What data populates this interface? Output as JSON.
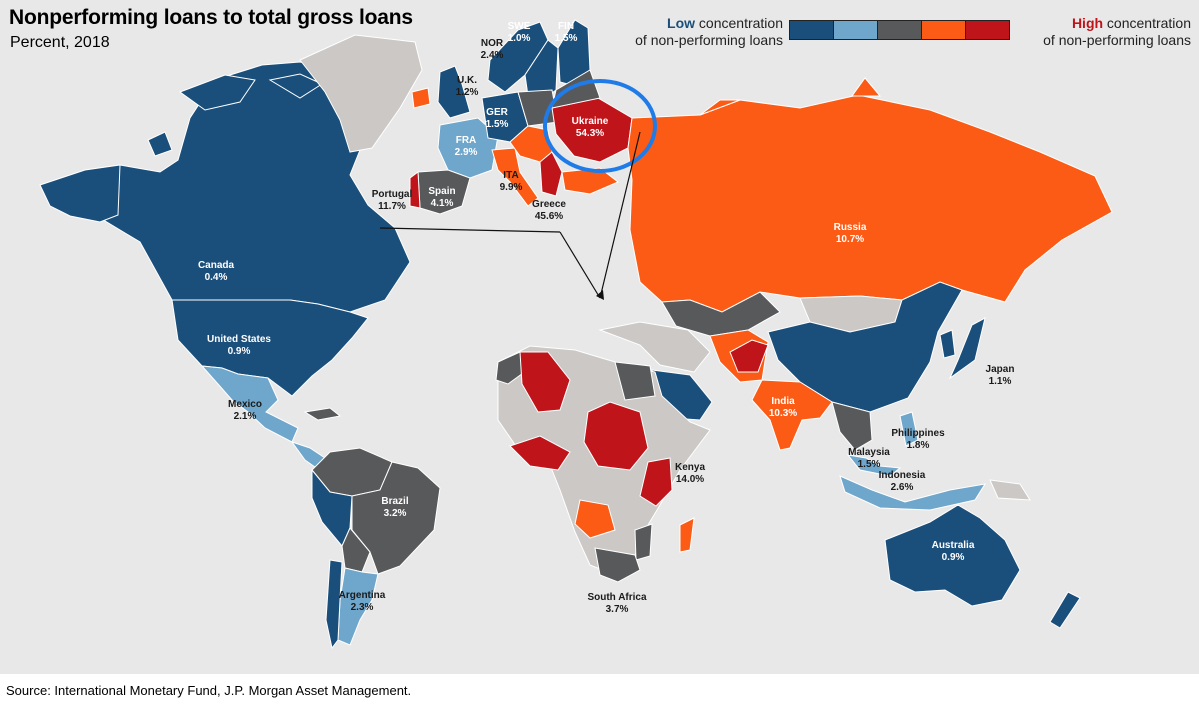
{
  "title": "Nonperforming loans to total gross loans",
  "subtitle": "Percent, 2018",
  "legend": {
    "low_keyword": "Low",
    "low_rest": " concentration",
    "low_line2": "of non-performing loans",
    "high_keyword": "High",
    "high_rest": " concentration",
    "high_line2": "of non-performing loans",
    "colors": [
      "#1b4f7b",
      "#6fa6cb",
      "#58595b",
      "#fb5b14",
      "#bf141a"
    ]
  },
  "colors": {
    "ocean": "#e8e8e8",
    "no_data": "#cbc8c5",
    "highlight_circle": "#1f7be8"
  },
  "countries": [
    {
      "name": "Canada",
      "value": "0.4%"
    },
    {
      "name": "United States",
      "value": "0.9%"
    },
    {
      "name": "Mexico",
      "value": "2.1%"
    },
    {
      "name": "Brazil",
      "value": "3.2%"
    },
    {
      "name": "Argentina",
      "value": "2.3%"
    },
    {
      "name": "Portugal",
      "value": "11.7%"
    },
    {
      "name": "Spain",
      "value": "4.1%"
    },
    {
      "name": "FRA",
      "value": "2.9%"
    },
    {
      "name": "U.K.",
      "value": "1.2%"
    },
    {
      "name": "GER",
      "value": "1.5%"
    },
    {
      "name": "NOR",
      "value": "2.4%"
    },
    {
      "name": "SWE",
      "value": "1.0%"
    },
    {
      "name": "FIN",
      "value": "1.5%"
    },
    {
      "name": "ITA",
      "value": "9.9%"
    },
    {
      "name": "Greece",
      "value": "45.6%"
    },
    {
      "name": "Ukraine",
      "value": "54.3%"
    },
    {
      "name": "Russia",
      "value": "10.7%"
    },
    {
      "name": "India",
      "value": "10.3%"
    },
    {
      "name": "Japan",
      "value": "1.1%"
    },
    {
      "name": "Philippines",
      "value": "1.8%"
    },
    {
      "name": "Malaysia",
      "value": "1.5%"
    },
    {
      "name": "Indonesia",
      "value": "2.6%"
    },
    {
      "name": "Kenya",
      "value": "14.0%"
    },
    {
      "name": "South Africa",
      "value": "3.7%"
    },
    {
      "name": "Australia",
      "value": "0.9%"
    }
  ],
  "source": "Source: International Monetary Fund, J.P. Morgan Asset Management."
}
